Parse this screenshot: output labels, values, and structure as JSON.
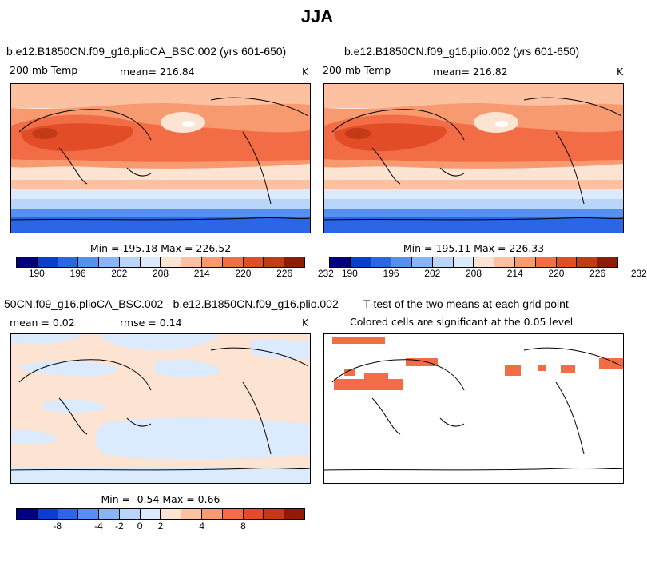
{
  "title": "JJA",
  "panels": {
    "p1": {
      "title": "b.e12.B1850CN.f09_g16.plioCA_BSC.002 (yrs 601-650)",
      "variable": "200 mb Temp",
      "mean": "mean= 216.84",
      "units": "K",
      "minmax": "Min = 195.18 Max = 226.52"
    },
    "p2": {
      "title": "b.e12.B1850CN.f09_g16.plio.002 (yrs 601-650)",
      "variable": "200 mb Temp",
      "mean": "mean= 216.82",
      "units": "K",
      "minmax": "Min = 195.11 Max = 226.33"
    },
    "p3": {
      "title": "50CN.f09_g16.plioCA_BSC.002 - b.e12.B1850CN.f09_g16.plio.002",
      "mean": "mean =   0.02",
      "rmse": "rmse =   0.14",
      "units": "K",
      "minmax": "Min =  -0.54 Max =   0.66"
    },
    "p4": {
      "title": "T-test of the two means at each grid point",
      "subtitle": "Colored cells are significant at the 0.05 level"
    }
  },
  "colorbar_abs": {
    "colors": [
      "#000080",
      "#0a3ecf",
      "#2a66e6",
      "#5590f0",
      "#88b6f5",
      "#b9d6fa",
      "#dceafd",
      "#fde3d2",
      "#fcc1a0",
      "#f89a6f",
      "#f26d45",
      "#e24d28",
      "#c23a16",
      "#8f1a06"
    ],
    "labels": [
      "190",
      "196",
      "202",
      "208",
      "214",
      "220",
      "226",
      "232"
    ]
  },
  "colorbar_diff": {
    "colors": [
      "#000080",
      "#0a3ecf",
      "#2a66e6",
      "#5590f0",
      "#88b6f5",
      "#b9d6fa",
      "#dceafd",
      "#fde3d2",
      "#fcc1a0",
      "#f89a6f",
      "#f26d45",
      "#e24d28",
      "#c23a16",
      "#8f1a06"
    ],
    "labels": [
      "-8",
      "-4",
      "-2",
      "0",
      "2",
      "4",
      "8"
    ]
  },
  "chart_data": [
    {
      "type": "heatmap",
      "title": "b.e12.B1850CN.f09_g16.plioCA_BSC.002 (yrs 601-650)",
      "variable": "200 mb Temp",
      "units": "K",
      "mean": 216.84,
      "min": 195.18,
      "max": 226.52,
      "colorbar_ticks": [
        190,
        196,
        202,
        208,
        214,
        220,
        226,
        232
      ]
    },
    {
      "type": "heatmap",
      "title": "b.e12.B1850CN.f09_g16.plio.002 (yrs 601-650)",
      "variable": "200 mb Temp",
      "units": "K",
      "mean": 216.82,
      "min": 195.11,
      "max": 226.33,
      "colorbar_ticks": [
        190,
        196,
        202,
        208,
        214,
        220,
        226,
        232
      ]
    },
    {
      "type": "heatmap",
      "title": "50CN.f09_g16.plioCA_BSC.002 - b.e12.B1850CN.f09_g16.plio.002",
      "units": "K",
      "mean": 0.02,
      "rmse": 0.14,
      "min": -0.54,
      "max": 0.66,
      "colorbar_ticks": [
        -8,
        -4,
        -2,
        0,
        2,
        4,
        8
      ]
    },
    {
      "type": "heatmap",
      "title": "T-test of the two means at each grid point",
      "subtitle": "Colored cells are significant at the 0.05 level",
      "significance_level": 0.05
    }
  ]
}
